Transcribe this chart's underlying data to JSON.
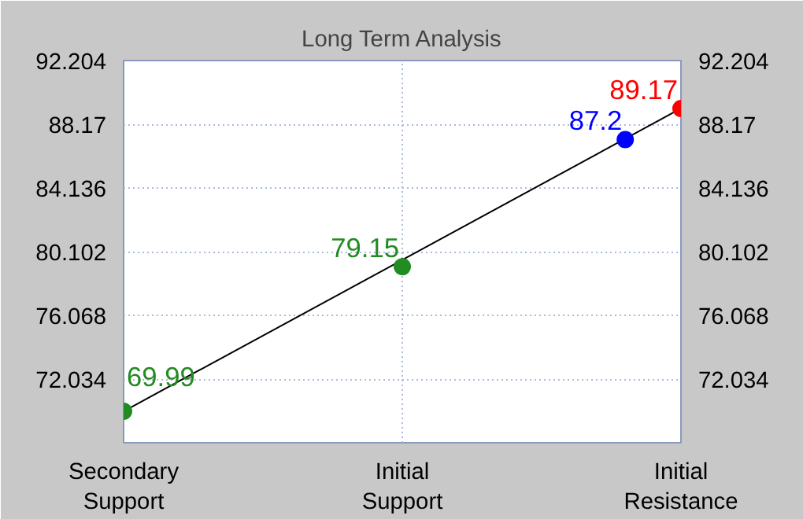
{
  "chart_data": {
    "type": "line",
    "title": "Long Term Analysis",
    "categories": [
      "Secondary Support",
      null,
      null,
      null,
      null,
      null,
      null,
      null,
      null,
      null,
      "Initial Support",
      null,
      null,
      null,
      null,
      null,
      null,
      null,
      null,
      null,
      "Initial Resistance"
    ],
    "ylim": [
      68,
      92.204
    ],
    "yticks": [
      72.034,
      76.068,
      80.102,
      84.136,
      88.17,
      92.204
    ],
    "y2lim": [
      68,
      92.204
    ],
    "y2ticks": [
      72.034,
      76.068,
      80.102,
      84.136,
      88.17,
      92.204
    ],
    "grid": true,
    "series": [
      {
        "color": "#000000",
        "values": [
          69.99,
          null,
          null,
          null,
          null,
          null,
          null,
          null,
          null,
          null,
          null,
          null,
          null,
          null,
          null,
          null,
          null,
          null,
          null,
          null,
          89.17
        ]
      },
      {
        "type": "scatter",
        "color": "#228b22",
        "values": [
          69.99,
          null,
          null,
          null,
          null,
          null,
          null,
          null,
          null,
          null,
          79.15,
          null,
          null,
          null,
          null,
          null,
          null,
          null,
          null,
          null,
          null
        ],
        "value_labels": [
          "69.99",
          null,
          null,
          null,
          null,
          null,
          null,
          null,
          null,
          null,
          "79.15",
          null,
          null,
          null,
          null,
          null,
          null,
          null,
          null,
          null,
          null
        ]
      },
      {
        "type": "scatter",
        "color": "#0000ff",
        "values": [
          null,
          null,
          null,
          null,
          null,
          null,
          null,
          null,
          null,
          null,
          null,
          null,
          null,
          null,
          null,
          null,
          null,
          null,
          87.2,
          null,
          null
        ],
        "value_labels": [
          null,
          null,
          null,
          null,
          null,
          null,
          null,
          null,
          null,
          null,
          null,
          null,
          null,
          null,
          null,
          null,
          null,
          null,
          "87.2",
          null,
          null
        ]
      },
      {
        "type": "scatter",
        "color": "#ff0000",
        "values": [
          null,
          null,
          null,
          null,
          null,
          null,
          null,
          null,
          null,
          null,
          null,
          null,
          null,
          null,
          null,
          null,
          null,
          null,
          null,
          null,
          89.17
        ],
        "value_labels": [
          null,
          null,
          null,
          null,
          null,
          null,
          null,
          null,
          null,
          null,
          null,
          null,
          null,
          null,
          null,
          null,
          null,
          null,
          null,
          null,
          "89.17"
        ]
      }
    ]
  }
}
